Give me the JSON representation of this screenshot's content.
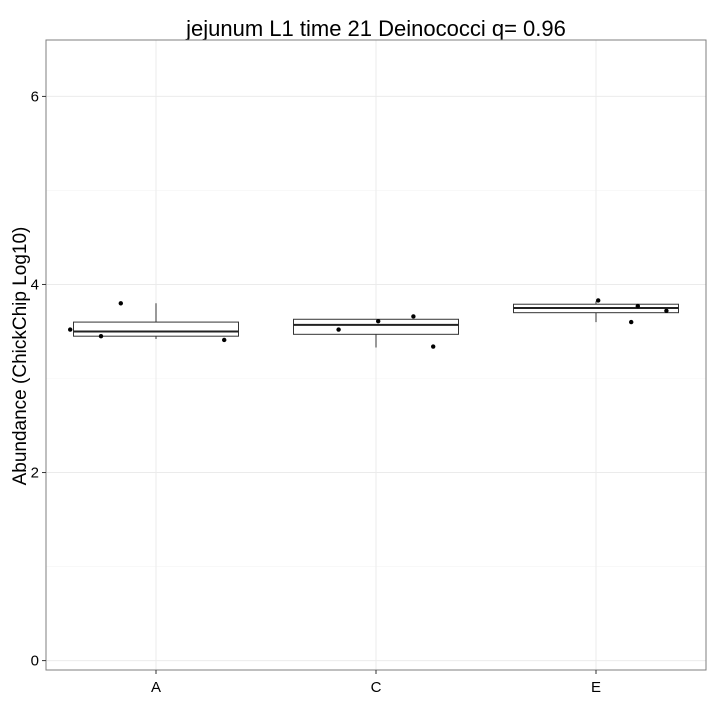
{
  "chart_data": {
    "type": "boxplot",
    "title": "jejunum L1 time 21 Deinococci q= 0.96",
    "xlabel": "",
    "ylabel": "Abundance (ChickChip Log10)",
    "categories": [
      "A",
      "C",
      "E"
    ],
    "ylim": [
      -0.1,
      6.6
    ],
    "yticks": [
      0,
      2,
      4,
      6
    ],
    "grid": true,
    "legend": "none",
    "boxes": [
      {
        "category": "A",
        "min": 3.42,
        "q1": 3.45,
        "median": 3.5,
        "q3": 3.6,
        "max": 3.8
      },
      {
        "category": "C",
        "min": 3.33,
        "q1": 3.47,
        "median": 3.57,
        "q3": 3.63,
        "max": 3.63
      },
      {
        "category": "E",
        "min": 3.6,
        "q1": 3.7,
        "median": 3.75,
        "q3": 3.79,
        "max": 3.82
      }
    ],
    "points": [
      {
        "category": "A",
        "jitter": -0.39,
        "y": 3.52
      },
      {
        "category": "A",
        "jitter": -0.25,
        "y": 3.45
      },
      {
        "category": "A",
        "jitter": -0.16,
        "y": 3.8
      },
      {
        "category": "A",
        "jitter": 0.31,
        "y": 3.41
      },
      {
        "category": "C",
        "jitter": -0.17,
        "y": 3.52
      },
      {
        "category": "C",
        "jitter": 0.01,
        "y": 3.61
      },
      {
        "category": "C",
        "jitter": 0.17,
        "y": 3.66
      },
      {
        "category": "C",
        "jitter": 0.26,
        "y": 3.34
      },
      {
        "category": "E",
        "jitter": 0.01,
        "y": 3.83
      },
      {
        "category": "E",
        "jitter": 0.16,
        "y": 3.6
      },
      {
        "category": "E",
        "jitter": 0.19,
        "y": 3.77
      },
      {
        "category": "E",
        "jitter": 0.32,
        "y": 3.72
      }
    ]
  }
}
